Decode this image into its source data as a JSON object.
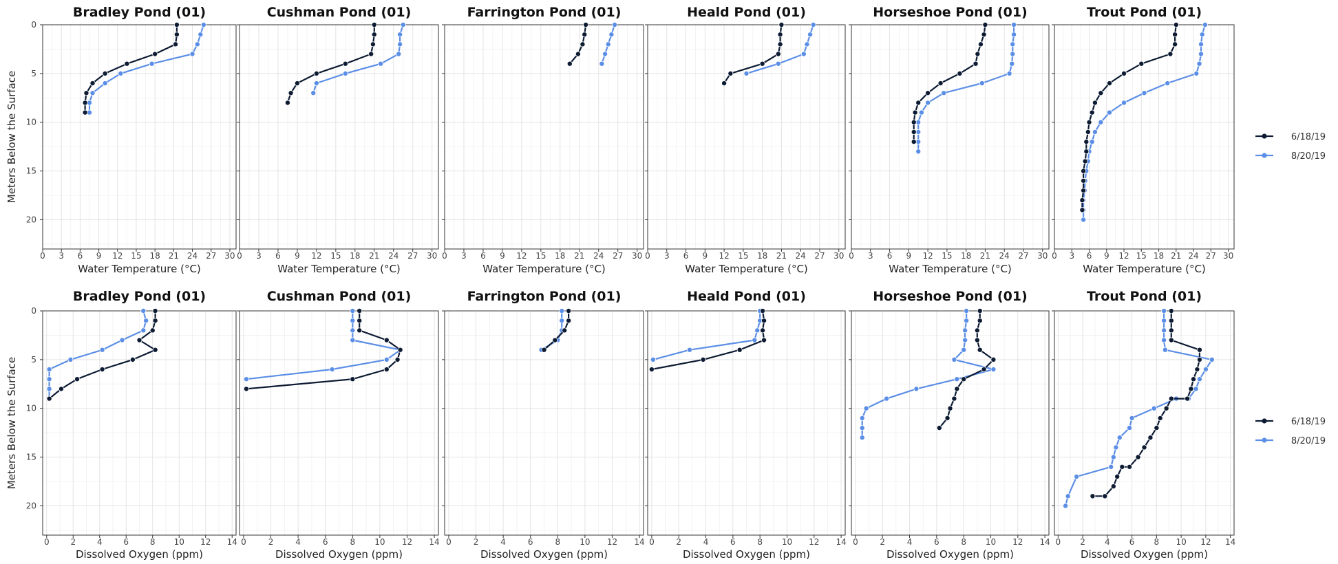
{
  "colors": {
    "6/18/19": "#0d1b33",
    "8/20/19": "#5b8ee6"
  },
  "legend": [
    "6/18/19",
    "8/20/19"
  ],
  "chart_data": [
    {
      "type": "line",
      "row": "temperature",
      "xlabel": "Water Temperature (°C)",
      "ylabel": "Meters Below the Surface",
      "xlim": [
        0,
        31
      ],
      "ylim": [
        0,
        23
      ],
      "xticks": [
        0,
        3,
        6,
        9,
        12,
        15,
        18,
        21,
        24,
        27,
        30
      ],
      "yticks": [
        0,
        5,
        10,
        15,
        20
      ],
      "y_reversed": true,
      "panels": [
        {
          "title": "Bradley Pond (01)",
          "series": [
            {
              "name": "6/18/19",
              "x": [
                21.5,
                21.5,
                21.3,
                18,
                13.5,
                10,
                8,
                7,
                6.8,
                6.8
              ],
              "y": [
                0,
                1,
                2,
                3,
                4,
                5,
                6,
                7,
                8,
                9
              ]
            },
            {
              "name": "8/20/19",
              "x": [
                25.8,
                25.3,
                24.8,
                24,
                17.5,
                12.5,
                10,
                8,
                7.5,
                7.5
              ],
              "y": [
                0,
                1,
                2,
                3,
                4,
                5,
                6,
                7,
                8,
                9
              ]
            }
          ]
        },
        {
          "title": "Cushman Pond (01)",
          "series": [
            {
              "name": "6/18/19",
              "x": [
                21,
                21,
                20.8,
                20.5,
                16.5,
                12,
                9,
                8,
                7.5,
                7.5
              ],
              "y": [
                0,
                1,
                2,
                3,
                4,
                5,
                6,
                7,
                8,
                8
              ]
            },
            {
              "name": "8/20/19",
              "x": [
                25.5,
                25,
                25,
                24.8,
                22,
                16.5,
                12,
                11.5
              ],
              "y": [
                0,
                1,
                2,
                3,
                4,
                5,
                6,
                7
              ]
            }
          ]
        },
        {
          "title": "Farrington Pond (01)",
          "series": [
            {
              "name": "6/18/19",
              "x": [
                22,
                21.8,
                21.5,
                20.8,
                19.5
              ],
              "y": [
                0,
                1,
                2,
                3,
                4
              ]
            },
            {
              "name": "8/20/19",
              "x": [
                26.5,
                26,
                25.5,
                25,
                24.5
              ],
              "y": [
                0,
                1,
                2,
                3,
                4
              ]
            }
          ]
        },
        {
          "title": "Heald Pond (01)",
          "series": [
            {
              "name": "6/18/19",
              "x": [
                21,
                20.8,
                20.8,
                20.5,
                18,
                13,
                12,
                12
              ],
              "y": [
                0,
                1,
                2,
                3,
                4,
                5,
                6,
                6
              ]
            },
            {
              "name": "8/20/19",
              "x": [
                26,
                25.5,
                25,
                24.5,
                20.5,
                15.5
              ],
              "y": [
                0,
                1,
                2,
                3,
                4,
                5
              ]
            }
          ]
        },
        {
          "title": "Horseshoe Pond (01)",
          "series": [
            {
              "name": "6/18/19",
              "x": [
                21,
                20.8,
                20.3,
                19.8,
                19.5,
                17,
                14,
                12,
                10.5,
                10,
                9.8,
                9.8,
                9.8
              ],
              "y": [
                0,
                1,
                2,
                3,
                4,
                5,
                6,
                7,
                8,
                9,
                10,
                11,
                12
              ]
            },
            {
              "name": "8/20/19",
              "x": [
                25.5,
                25.5,
                25.3,
                25.3,
                25.2,
                24.8,
                20.5,
                14.5,
                12,
                11,
                10.5,
                10.5,
                10.5,
                10.5
              ],
              "y": [
                0,
                1,
                2,
                3,
                4,
                5,
                6,
                7,
                8,
                9,
                10,
                11,
                12,
                13
              ]
            }
          ]
        },
        {
          "title": "Trout Pond (01)",
          "series": [
            {
              "name": "6/18/19",
              "x": [
                21,
                20.8,
                20.8,
                20,
                15,
                12,
                9.5,
                8,
                7,
                6.5,
                6,
                5.8,
                5.5,
                5.5,
                5.3,
                5,
                5,
                5,
                4.8,
                4.8
              ],
              "y": [
                0,
                1,
                2,
                3,
                4,
                5,
                6,
                7,
                8,
                9,
                10,
                11,
                12,
                13,
                14,
                15,
                16,
                17,
                18,
                19
              ]
            },
            {
              "name": "8/20/19",
              "x": [
                26,
                25.5,
                25.3,
                25.3,
                25,
                24.5,
                19.5,
                15.5,
                12,
                9.5,
                8,
                7,
                6.5,
                6,
                5.8,
                5.5,
                5.3,
                5.2,
                5,
                5,
                5
              ],
              "y": [
                0,
                1,
                2,
                3,
                4,
                5,
                6,
                7,
                8,
                9,
                10,
                11,
                12,
                13,
                14,
                15,
                16,
                17,
                18,
                19,
                20
              ]
            }
          ]
        }
      ]
    },
    {
      "type": "line",
      "row": "oxygen",
      "xlabel": "Dissolved Oxygen (ppm)",
      "ylabel": "Meters Below the Surface",
      "xlim": [
        -0.3,
        14.3
      ],
      "ylim": [
        0,
        23
      ],
      "xticks": [
        0,
        2,
        4,
        6,
        8,
        10,
        12,
        14
      ],
      "yticks": [
        0,
        5,
        10,
        15,
        20
      ],
      "y_reversed": true,
      "panels": [
        {
          "title": "Bradley Pond (01)",
          "series": [
            {
              "name": "6/18/19",
              "x": [
                8.2,
                8.2,
                8,
                7,
                8.2,
                6.5,
                4.2,
                2.3,
                1.1,
                0.2
              ],
              "y": [
                0,
                1,
                2,
                3,
                4,
                5,
                6,
                7,
                8,
                9
              ]
            },
            {
              "name": "8/20/19",
              "x": [
                7.3,
                7.5,
                7.3,
                5.7,
                4.2,
                1.8,
                0.2,
                0.2,
                0.2,
                0.2
              ],
              "y": [
                0,
                1,
                2,
                3,
                4,
                5,
                6,
                7,
                8,
                9
              ]
            }
          ]
        },
        {
          "title": "Cushman Pond (01)",
          "series": [
            {
              "name": "6/18/19",
              "x": [
                8.5,
                8.5,
                8.5,
                10.5,
                11.5,
                11.3,
                10.5,
                8,
                0.2
              ],
              "y": [
                0,
                1,
                2,
                3,
                4,
                5,
                6,
                7,
                8
              ]
            },
            {
              "name": "8/20/19",
              "x": [
                8,
                8,
                8,
                8,
                11.5,
                10.5,
                6.5,
                0.2
              ],
              "y": [
                0,
                1,
                2,
                3,
                4,
                5,
                6,
                7
              ]
            }
          ]
        },
        {
          "title": "Farrington Pond (01)",
          "series": [
            {
              "name": "6/18/19",
              "x": [
                8.8,
                8.8,
                8.5,
                7.8,
                7
              ],
              "y": [
                0,
                1,
                2,
                3,
                4
              ]
            },
            {
              "name": "8/20/19",
              "x": [
                8.3,
                8.3,
                8.3,
                8,
                6.8
              ],
              "y": [
                0,
                1,
                2,
                3,
                4
              ]
            }
          ]
        },
        {
          "title": "Heald Pond (01)",
          "series": [
            {
              "name": "6/18/19",
              "x": [
                8.2,
                8.3,
                8.2,
                8.3,
                6.5,
                3.8,
                0
              ],
              "y": [
                0,
                1,
                2,
                3,
                4,
                5,
                6
              ]
            },
            {
              "name": "8/20/19",
              "x": [
                8,
                8,
                7.8,
                7.6,
                2.8,
                0.1
              ],
              "y": [
                0,
                1,
                2,
                3,
                4,
                5
              ]
            }
          ]
        },
        {
          "title": "Horseshoe Pond (01)",
          "series": [
            {
              "name": "6/18/19",
              "x": [
                9.2,
                9.2,
                9,
                9,
                9.2,
                10.2,
                10.2,
                9.5,
                8,
                7.5,
                7.3,
                7,
                6.8,
                6.2
              ],
              "y": [
                0,
                1,
                2,
                3,
                4,
                5,
                5,
                6,
                7,
                8,
                9,
                10,
                11,
                12
              ]
            },
            {
              "name": "8/20/19",
              "x": [
                8.2,
                8.2,
                8.1,
                8.1,
                8,
                7.3,
                10.2,
                7.5,
                4.5,
                2.3,
                0.8,
                0.5,
                0.5,
                0.5,
                0.5
              ],
              "y": [
                0,
                1,
                2,
                3,
                4,
                5,
                6,
                7,
                8,
                9,
                10,
                11,
                12,
                13,
                13
              ]
            }
          ]
        },
        {
          "title": "Trout Pond (01)",
          "series": [
            {
              "name": "6/18/19",
              "x": [
                9.2,
                9.2,
                9.2,
                9.2,
                11.5,
                11.5,
                11.3,
                11,
                10.8,
                10.5,
                9.2,
                8.8,
                8.3,
                8,
                7.5,
                7,
                6.5,
                5.8,
                5.2,
                4.8,
                4.5,
                3.8,
                2.8
              ],
              "y": [
                0,
                1,
                2,
                3,
                4,
                5,
                6,
                7,
                8,
                9,
                9,
                10,
                11,
                12,
                13,
                14,
                15,
                16,
                16,
                17,
                18,
                19,
                19
              ]
            },
            {
              "name": "8/20/19",
              "x": [
                8.6,
                8.6,
                8.6,
                8.6,
                8.7,
                12.5,
                12,
                11.5,
                11.2,
                10.6,
                9.6,
                7.8,
                6,
                5.8,
                5,
                4.7,
                4.5,
                4.3,
                1.5,
                0.8,
                0.6,
                0.6
              ],
              "y": [
                0,
                1,
                2,
                3,
                4,
                5,
                6,
                7,
                8,
                9,
                9,
                10,
                11,
                12,
                13,
                14,
                15,
                16,
                17,
                19,
                20,
                20
              ]
            }
          ]
        }
      ]
    }
  ]
}
